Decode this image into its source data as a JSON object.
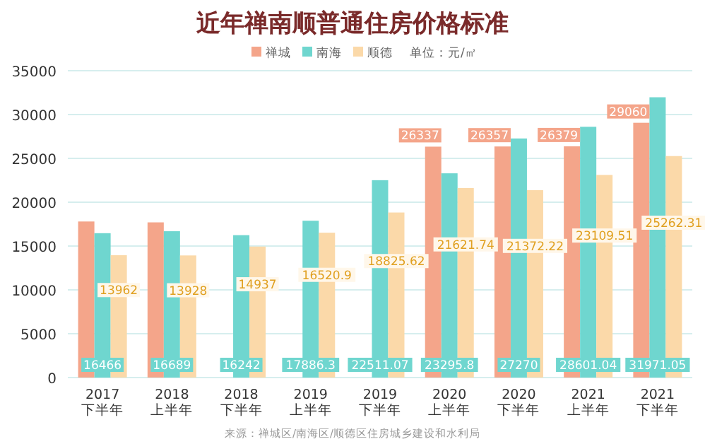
{
  "chart_data": {
    "type": "bar",
    "title": "近年禅南顺普通住房价格标准",
    "annotations": [
      "单位：元/㎡",
      "来源：禅城区/南海区/顺德区住房城乡建设和水利局"
    ],
    "categories": [
      "2017\n下半年",
      "2018\n上半年",
      "2018\n下半年",
      "2019\n上半年",
      "2019\n下半年",
      "2020\n上半年",
      "2020\n下半年",
      "2021\n上半年",
      "2021\n下半年"
    ],
    "series": [
      {
        "name": "禅城",
        "color": "#f4a58a",
        "values": [
          17800,
          17700,
          null,
          null,
          null,
          26337,
          26357,
          26379,
          29060
        ],
        "value_labels": [
          null,
          null,
          null,
          null,
          null,
          "26337",
          "26357",
          "26379",
          "29060"
        ]
      },
      {
        "name": "南海",
        "color": "#6fd6cf",
        "values": [
          16466,
          16689,
          16242,
          17886.3,
          22511.07,
          23295.8,
          27270,
          28601.04,
          31971.05
        ],
        "value_labels": [
          "16466",
          "16689",
          "16242",
          "17886.3",
          "22511.07",
          "23295.8",
          "27270",
          "28601.04",
          "31971.05"
        ]
      },
      {
        "name": "顺德",
        "color": "#fbd9a9",
        "values": [
          13962,
          13928,
          14937,
          16520.9,
          18825.62,
          21621.74,
          21372.22,
          23109.51,
          25262.31
        ],
        "value_labels": [
          "13962",
          "13928",
          "14937",
          "16520.9",
          "18825.62",
          "21621.74",
          "21372.22",
          "23109.51",
          "25262.31"
        ]
      }
    ],
    "ylim": [
      0,
      35000
    ],
    "yticks": [
      0,
      5000,
      10000,
      15000,
      20000,
      25000,
      30000,
      35000
    ],
    "grid": "y",
    "legend": "top"
  }
}
